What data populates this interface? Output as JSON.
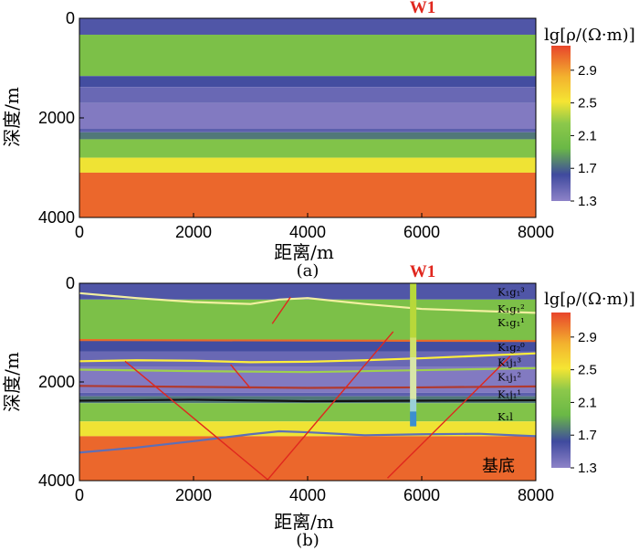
{
  "well_label": "W1",
  "chart_data": [
    {
      "id": "a",
      "type": "heatmap",
      "subtitle": "(a)",
      "xlabel": "距离/m",
      "ylabel": "深度/m",
      "xlim": [
        0,
        8000
      ],
      "ylim": [
        4000,
        0
      ],
      "xticks": [
        0,
        2000,
        4000,
        6000,
        8000
      ],
      "yticks": [
        0,
        2000,
        4000
      ],
      "well_x": 5850,
      "colorbar": {
        "title": "lg[ρ/(Ω·m)]",
        "min": 1.3,
        "max": 3.2,
        "ticks": [
          2.9,
          2.5,
          2.1,
          1.7,
          1.3
        ],
        "colors": [
          "#8e83c8",
          "#3f4a9e",
          "#6ab846",
          "#8cc84a",
          "#f5e533",
          "#f3b22e",
          "#e8452b"
        ]
      },
      "layer_top_depths_m": [
        0,
        330,
        1160,
        1380,
        1700,
        2220,
        2290,
        2430,
        2800,
        3100
      ],
      "layer_resistivity_log": [
        1.55,
        2.1,
        1.6,
        1.45,
        1.35,
        1.5,
        1.75,
        2.15,
        2.55,
        3.1
      ]
    },
    {
      "id": "b",
      "type": "heatmap",
      "subtitle": "(b)",
      "xlabel": "距离/m",
      "ylabel": "深度/m",
      "xlim": [
        0,
        8000
      ],
      "ylim": [
        4000,
        0
      ],
      "xticks": [
        0,
        2000,
        4000,
        6000,
        8000
      ],
      "yticks": [
        0,
        2000,
        4000
      ],
      "well_x": 5850,
      "colorbar": {
        "title": "lg[ρ/(Ω·m)]",
        "min": 1.3,
        "max": 3.2,
        "ticks": [
          2.9,
          2.5,
          2.1,
          1.7,
          1.3
        ],
        "colors": [
          "#8e83c8",
          "#3f4a9e",
          "#6ab846",
          "#8cc84a",
          "#f5e533",
          "#f3b22e",
          "#e8452b"
        ]
      },
      "layer_top_depths_m": [
        0,
        330,
        1160,
        1380,
        1700,
        2220,
        2290,
        2430,
        2800,
        3100
      ],
      "layer_resistivity_log": [
        1.55,
        2.1,
        1.6,
        1.45,
        1.35,
        1.5,
        1.75,
        2.15,
        2.55,
        3.1
      ],
      "formation_labels": [
        {
          "text": "K₁g₁³",
          "depth_m": 180
        },
        {
          "text": "K₁g₁²",
          "depth_m": 520
        },
        {
          "text": "K₁g₁¹",
          "depth_m": 800
        },
        {
          "text": "K₁g₂⁰",
          "depth_m": 1300
        },
        {
          "text": "K₁j₁³",
          "depth_m": 1600
        },
        {
          "text": "K₁j₁²",
          "depth_m": 1900
        },
        {
          "text": "K₁j₁¹",
          "depth_m": 2250
        },
        {
          "text": "K₁l",
          "depth_m": 2700
        }
      ],
      "basement_label": "基底",
      "horizons": [
        {
          "color": "#f2f0a0",
          "x": [
            0,
            1000,
            2000,
            3000,
            3500,
            4000,
            5000,
            6000,
            7000,
            8000
          ],
          "depth": [
            200,
            300,
            380,
            420,
            330,
            300,
            420,
            520,
            560,
            600
          ]
        },
        {
          "color": "#e86a2a",
          "x": [
            0,
            4000,
            8000
          ],
          "depth": [
            1150,
            1160,
            1170
          ]
        },
        {
          "color": "#ffef3a",
          "x": [
            0,
            1000,
            2000,
            3000,
            4000,
            5000,
            6000,
            7000,
            8000
          ],
          "depth": [
            1580,
            1560,
            1570,
            1600,
            1590,
            1560,
            1520,
            1470,
            1420
          ]
        },
        {
          "color": "#9fd04e",
          "x": [
            0,
            2000,
            4000,
            6000,
            8000
          ],
          "depth": [
            1750,
            1780,
            1800,
            1760,
            1720
          ]
        },
        {
          "color": "#b03a30",
          "x": [
            0,
            2000,
            4000,
            6000,
            8000
          ],
          "depth": [
            2080,
            2100,
            2120,
            2110,
            2090
          ]
        },
        {
          "color": "#111111",
          "x": [
            0,
            2000,
            4000,
            6000,
            8000
          ],
          "depth": [
            2380,
            2360,
            2390,
            2380,
            2370
          ]
        },
        {
          "color": "#5c6fb8",
          "x": [
            0,
            1000,
            2000,
            3000,
            3500,
            4000,
            5000,
            6000,
            7000,
            8000
          ],
          "depth": [
            3430,
            3330,
            3200,
            3060,
            3000,
            3020,
            3080,
            3060,
            3050,
            3100
          ]
        }
      ],
      "faults": [
        {
          "x": [
            3700,
            3380
          ],
          "depth": [
            280,
            820
          ]
        },
        {
          "x": [
            800,
            3300
          ],
          "depth": [
            1580,
            3980
          ]
        },
        {
          "x": [
            5500,
            3300
          ],
          "depth": [
            980,
            3980
          ]
        },
        {
          "x": [
            2650,
            3000
          ],
          "depth": [
            1650,
            2130
          ]
        },
        {
          "x": [
            7550,
            5400
          ],
          "depth": [
            1480,
            3950
          ]
        }
      ]
    }
  ]
}
